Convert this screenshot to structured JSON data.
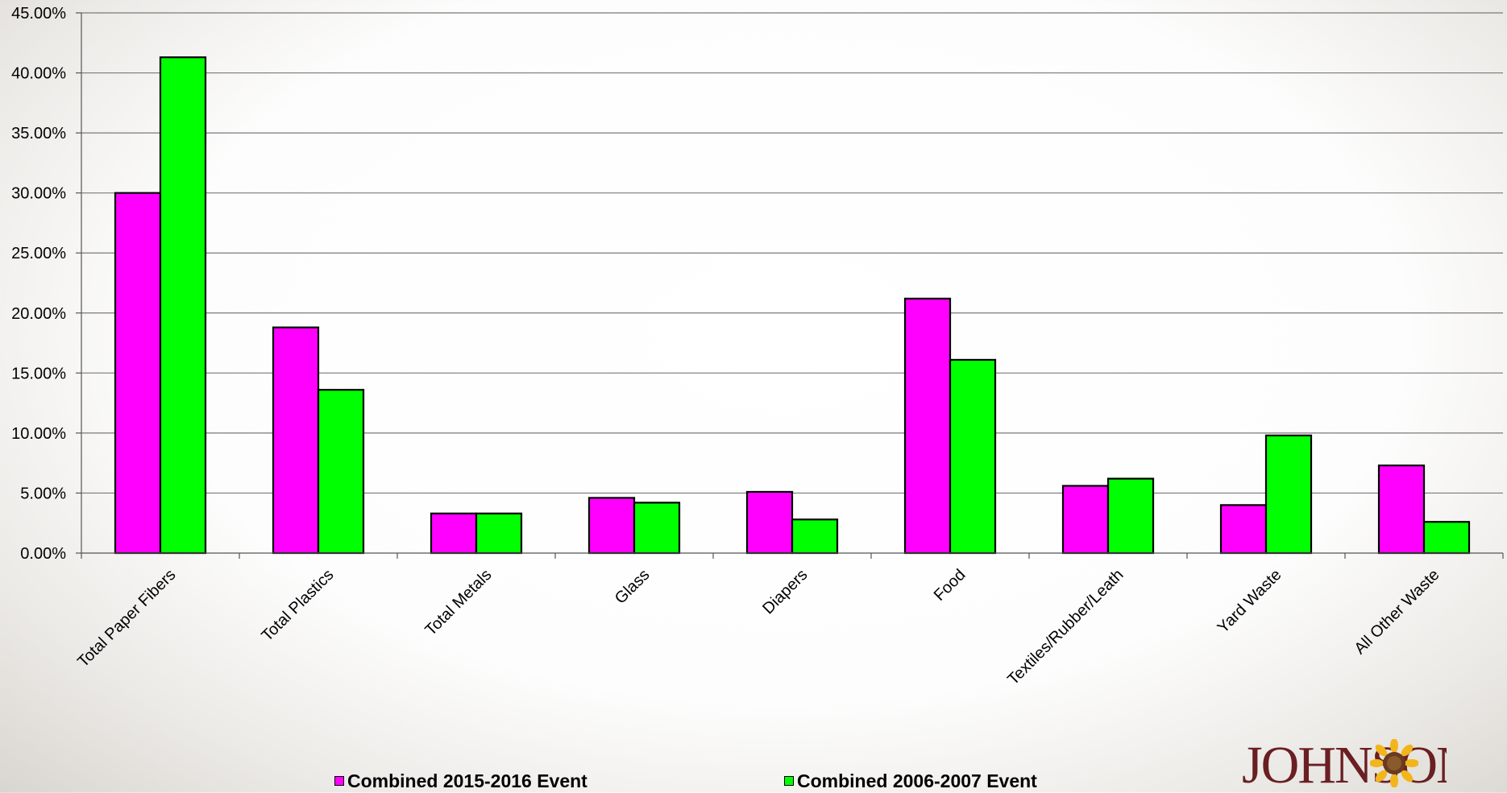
{
  "chart_data": {
    "type": "bar",
    "categories": [
      "Total Paper Fibers",
      "Total Plastics",
      "Total Metals",
      "Glass",
      "Diapers",
      "Food",
      "Textiles/Rubber/Leath",
      "Yard Waste",
      "All Other Waste"
    ],
    "series": [
      {
        "name": "Combined 2015-2016 Event",
        "color": "#ff00ff",
        "values": [
          30.0,
          18.8,
          3.3,
          4.6,
          5.1,
          21.2,
          5.6,
          4.0,
          7.3
        ]
      },
      {
        "name": "Combined 2006-2007 Event",
        "color": "#00ff00",
        "values": [
          41.3,
          13.6,
          3.3,
          4.2,
          2.8,
          16.1,
          6.2,
          9.8,
          2.6
        ]
      }
    ],
    "ylim": [
      0,
      45
    ],
    "yticks": [
      "0.00%",
      "5.00%",
      "10.00%",
      "15.00%",
      "20.00%",
      "25.00%",
      "30.00%",
      "35.00%",
      "40.00%",
      "45.00%"
    ],
    "grid": true,
    "legend_position": "bottom"
  },
  "logo": {
    "text": "JOHNSON"
  }
}
